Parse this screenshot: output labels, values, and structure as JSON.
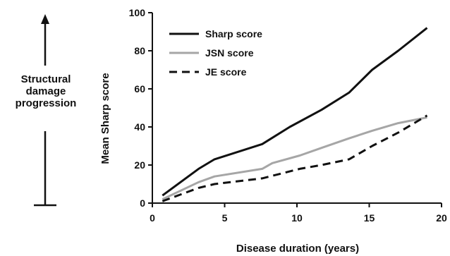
{
  "side_annotation": {
    "lines": [
      "Structural",
      "damage",
      "progression"
    ]
  },
  "chart_data": {
    "type": "line",
    "title": "",
    "xlabel": "Disease duration (years)",
    "ylabel": "Mean Sharp score",
    "xlim": [
      0,
      20
    ],
    "ylim": [
      0,
      100
    ],
    "xticks": [
      0,
      5,
      10,
      15,
      20
    ],
    "yticks": [
      0,
      20,
      40,
      60,
      80,
      100
    ],
    "grid": false,
    "legend_position": "top-left",
    "series": [
      {
        "name": "Sharp score",
        "color": "#111111",
        "dash": "solid",
        "x": [
          0.7,
          3.2,
          4.3,
          7.6,
          9.5,
          11.7,
          13.6,
          15.2,
          17.0,
          19.0
        ],
        "y": [
          4,
          18,
          23,
          31,
          40,
          49,
          58,
          70,
          80,
          92
        ]
      },
      {
        "name": "JSN score",
        "color": "#a6a6a6",
        "dash": "solid",
        "x": [
          0.7,
          3.2,
          4.3,
          7.6,
          8.3,
          10.2,
          11.7,
          13.6,
          15.2,
          17.0,
          19.0
        ],
        "y": [
          2,
          11,
          14,
          18,
          21,
          25,
          29,
          34,
          38,
          42,
          45
        ]
      },
      {
        "name": "JE score",
        "color": "#111111",
        "dash": "dashed",
        "x": [
          0.7,
          3.2,
          4.3,
          7.6,
          10.2,
          11.7,
          13.6,
          15.2,
          17.0,
          19.0
        ],
        "y": [
          1,
          8,
          10,
          13,
          18,
          20,
          23,
          30,
          37,
          46
        ]
      }
    ]
  }
}
